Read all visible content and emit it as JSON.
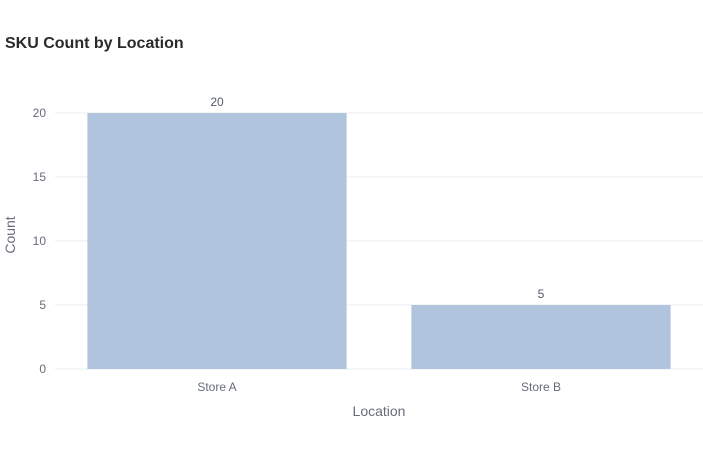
{
  "chart_data": {
    "type": "bar",
    "title": "SKU Count by Location",
    "xlabel": "Location",
    "ylabel": "Count",
    "categories": [
      "Store A",
      "Store B"
    ],
    "values": [
      20,
      5
    ],
    "data_labels": [
      "20",
      "5"
    ],
    "ylim": [
      0,
      20
    ],
    "yticks": [
      0,
      5,
      10,
      15,
      20
    ],
    "ytick_labels": [
      "0",
      "5",
      "10",
      "15",
      "20"
    ],
    "grid": true,
    "bar_color": "#b0c4de",
    "grid_color": "#eaedf0"
  }
}
